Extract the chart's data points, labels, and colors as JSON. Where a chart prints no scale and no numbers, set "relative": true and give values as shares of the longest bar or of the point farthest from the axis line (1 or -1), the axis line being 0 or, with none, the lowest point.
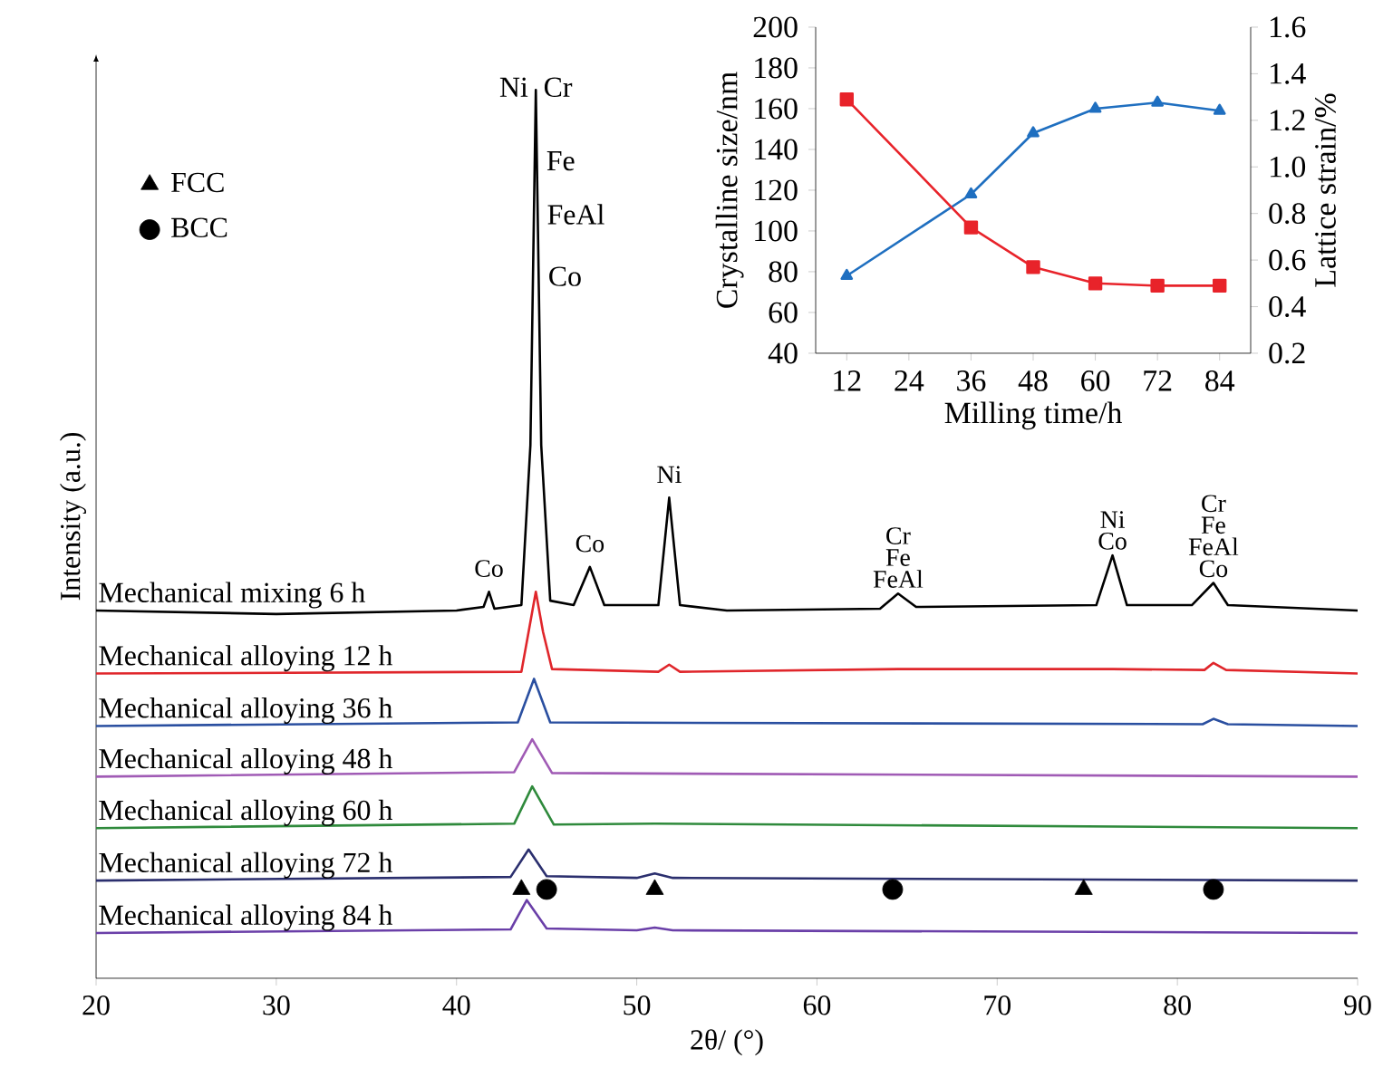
{
  "chart_data": [
    {
      "type": "line",
      "relative": true,
      "xlabel": "2θ/ (°)",
      "ylabel": "Intensity (a.u.)",
      "xlim": [
        20,
        90
      ],
      "xticks": [
        20,
        30,
        40,
        50,
        60,
        70,
        80,
        90
      ],
      "legend": "top left",
      "series": [
        {
          "name": "Mechanical mixing 6 h",
          "color": "#000000",
          "x": [
            20,
            30,
            40,
            41.5,
            41.8,
            42.1,
            43.6,
            44.1,
            44.4,
            44.7,
            45.2,
            46.5,
            47.4,
            48.2,
            51.2,
            51.8,
            52.4,
            55,
            63.5,
            64.5,
            65.5,
            75.5,
            76.4,
            77.2,
            80.8,
            82,
            82.8,
            90
          ],
          "values": [
            0.414,
            0.41,
            0.414,
            0.418,
            0.435,
            0.416,
            0.42,
            0.6,
            1.0,
            0.6,
            0.425,
            0.42,
            0.463,
            0.42,
            0.42,
            0.541,
            0.42,
            0.414,
            0.416,
            0.433,
            0.418,
            0.42,
            0.476,
            0.42,
            0.42,
            0.445,
            0.42,
            0.414
          ]
        },
        {
          "name": "Mechanical alloying 12 h",
          "color": "#e0262b",
          "x": [
            20,
            43.6,
            44.0,
            44.4,
            44.8,
            45.3,
            51.2,
            51.8,
            52.4,
            64.5,
            76.4,
            81.5,
            82,
            82.7,
            90
          ],
          "values": [
            0.343,
            0.345,
            0.39,
            0.435,
            0.39,
            0.348,
            0.345,
            0.353,
            0.345,
            0.348,
            0.348,
            0.347,
            0.355,
            0.347,
            0.343
          ]
        },
        {
          "name": "Mechanical alloying 36 h",
          "color": "#2a4fa0",
          "x": [
            20,
            43.4,
            44.3,
            45.2,
            81.4,
            82,
            82.8,
            90
          ],
          "values": [
            0.284,
            0.288,
            0.337,
            0.288,
            0.286,
            0.292,
            0.286,
            0.284
          ]
        },
        {
          "name": "Mechanical alloying 48 h",
          "color": "#a05bb5",
          "x": [
            20,
            43.2,
            44.2,
            45.3,
            90
          ],
          "values": [
            0.227,
            0.232,
            0.269,
            0.231,
            0.227
          ]
        },
        {
          "name": "Mechanical alloying 60 h",
          "color": "#2f8a3c",
          "x": [
            20,
            43.2,
            44.2,
            45.4,
            51,
            90
          ],
          "values": [
            0.169,
            0.174,
            0.216,
            0.173,
            0.174,
            0.169
          ]
        },
        {
          "name": "Mechanical alloying 72 h",
          "color": "#2b2f6e",
          "x": [
            20,
            43.0,
            44.0,
            45.0,
            50,
            51,
            52,
            90
          ],
          "values": [
            0.11,
            0.114,
            0.145,
            0.115,
            0.113,
            0.118,
            0.113,
            0.11
          ]
        },
        {
          "name": "Mechanical alloying 84 h",
          "color": "#6a3fa8",
          "x": [
            20,
            43.0,
            43.9,
            45.0,
            50,
            51,
            52,
            90
          ],
          "values": [
            0.051,
            0.055,
            0.088,
            0.056,
            0.054,
            0.057,
            0.054,
            0.051
          ]
        },
        {
          "name": "FCC",
          "type": "scatter",
          "marker": "triangle",
          "color": "#000000",
          "x": [
            43.6,
            51,
            74.8
          ],
          "values": [
            0.1,
            0.1,
            0.1
          ]
        },
        {
          "name": "BCC",
          "type": "scatter",
          "marker": "circle",
          "color": "#000000",
          "x": [
            45.0,
            64.2,
            82.0
          ],
          "values": [
            0.1,
            0.1,
            0.1
          ]
        }
      ],
      "annotations": [
        {
          "text": "Ni",
          "x": 44.4,
          "y": 1.0
        },
        {
          "text": "Cr",
          "x": 44.4,
          "y": 1.0
        },
        {
          "text": "Fe",
          "x": 44.46,
          "y": 0.92
        },
        {
          "text": "FeAl",
          "x": 44.5,
          "y": 0.86
        },
        {
          "text": "Co",
          "x": 44.56,
          "y": 0.79
        },
        {
          "text": "Co",
          "x": 41.8,
          "y": 0.435
        },
        {
          "text": "Co",
          "x": 47.4,
          "y": 0.463
        },
        {
          "text": "Ni",
          "x": 51.8,
          "y": 0.541
        },
        {
          "text": "Cr",
          "x": 64.5,
          "y": 0.433
        },
        {
          "text": "Fe",
          "x": 64.5,
          "y": 0.433
        },
        {
          "text": "FeAl",
          "x": 64.5,
          "y": 0.433
        },
        {
          "text": "Ni",
          "x": 76.4,
          "y": 0.476
        },
        {
          "text": "Co",
          "x": 76.4,
          "y": 0.476
        },
        {
          "text": "Cr",
          "x": 82,
          "y": 0.445
        },
        {
          "text": "Fe",
          "x": 82,
          "y": 0.445
        },
        {
          "text": "FeAl",
          "x": 82,
          "y": 0.445
        },
        {
          "text": "Co",
          "x": 82,
          "y": 0.445
        }
      ]
    },
    {
      "type": "line",
      "xlabel": "Milling time/h",
      "ylabel": "Crystalline size/nm",
      "y2label": "Lattice strain/%",
      "x": [
        12,
        36,
        48,
        60,
        72,
        84
      ],
      "xlim": [
        6,
        90
      ],
      "xticks": [
        12,
        24,
        36,
        48,
        60,
        72,
        84
      ],
      "ylim": [
        40,
        200
      ],
      "yticks": [
        40,
        60,
        80,
        100,
        120,
        140,
        160,
        180,
        200
      ],
      "y2lim": [
        0.2,
        1.6
      ],
      "y2ticks": [
        {
          "value": 0.2,
          "label": "0.2"
        },
        {
          "value": 0.4,
          "label": "0.4"
        },
        {
          "value": 0.6,
          "label": "0.6"
        },
        {
          "value": 0.8,
          "label": "0.8"
        },
        {
          "value": 1.0,
          "label": "1.0"
        },
        {
          "value": 1.2,
          "label": "1.2"
        },
        {
          "value": 1.4,
          "label": "1.4"
        },
        {
          "value": 1.6,
          "label": "1.6"
        }
      ],
      "series": [
        {
          "color": "#1f6fc0",
          "marker": "triangle",
          "values": [
            78,
            118,
            148,
            160,
            163,
            159
          ]
        },
        {
          "color": "#e8232a",
          "marker": "square",
          "axis": "y2",
          "values": [
            1.29,
            0.74,
            0.57,
            0.5,
            0.49,
            0.49
          ]
        }
      ]
    }
  ]
}
